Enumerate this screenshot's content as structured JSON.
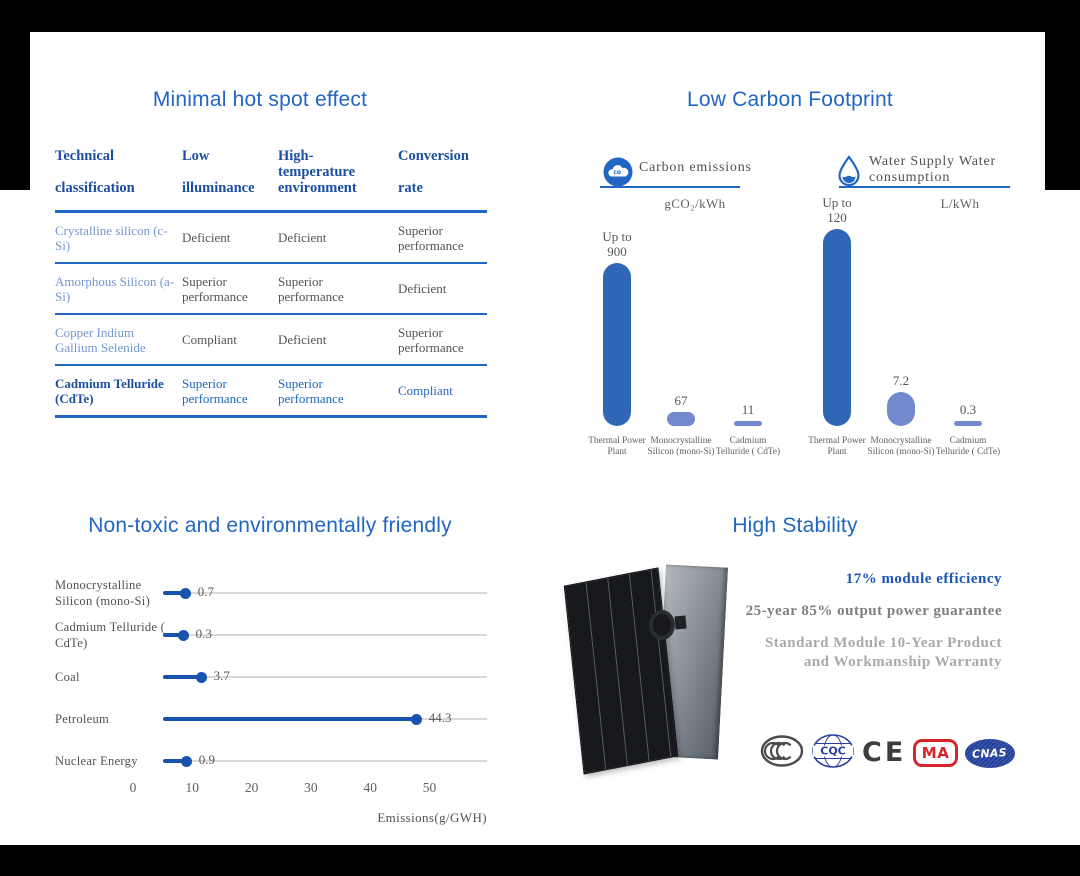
{
  "colors": {
    "accent_blue": "#2166C3",
    "table_header_blue": "#1C4FA1",
    "light_blue": "#7297CE",
    "bar_dark_blue": "#2F66B5",
    "bar_light_blue": "#7289CE",
    "lollipop_blue": "#1853AE",
    "track_gray": "#D9D9D9",
    "text_gray": "#55575A",
    "warranty_gray": "#7D7F82",
    "warranty_light_gray": "#A7A9AC",
    "cma_red": "#D8232A",
    "cnas_blue": "#23409A",
    "frame_black": "#000000"
  },
  "hotspot": {
    "title": "Minimal hot spot effect",
    "table": {
      "header_lines": [
        [
          "Technical",
          "classification"
        ],
        [
          "Low",
          "illuminance"
        ],
        [
          "High-",
          "temperature",
          "environment"
        ],
        [
          "Conversion",
          "rate"
        ]
      ],
      "rows": [
        {
          "label": "Crystalline silicon (c-Si)",
          "cells": [
            "Deficient",
            "Deficient",
            "Superior performance"
          ],
          "highlight": false
        },
        {
          "label": "Amorphous Silicon (a-Si)",
          "cells": [
            "Superior performance",
            "Superior performance",
            "Deficient"
          ],
          "highlight": false
        },
        {
          "label": "Copper Indium Gallium Selenide",
          "cells": [
            "Compliant",
            "Deficient",
            "Superior performance"
          ],
          "highlight": false
        },
        {
          "label": "Cadmium Telluride (CdTe)",
          "cells": [
            "Superior performance",
            "Superior performance",
            "Compliant"
          ],
          "highlight": true
        }
      ]
    }
  },
  "carbon_footprint": {
    "title": "Low Carbon Footprint",
    "charts": [
      {
        "legend_lines": [
          "Carbon emissions"
        ],
        "icon": "carbon-cloud-icon",
        "unit": "gCO₂/kWh",
        "categories": [
          "Thermal Power Plant",
          "Monocrystalline Silicon (mono-Si)",
          "Cadmium Telluride ( CdTe)"
        ],
        "values": [
          900,
          67,
          11
        ],
        "annotations": [
          {
            "prefix": "Up to",
            "value": "900"
          },
          {
            "value": "67"
          },
          {
            "value": "11"
          }
        ]
      },
      {
        "legend_lines": [
          "Water Supply Water",
          "consumption"
        ],
        "icon": "water-drop-icon",
        "unit": "L/kWh",
        "categories": [
          "Thermal Power Plant",
          "Monocrystalline Silicon (mono-Si)",
          "Cadmium Telluride ( CdTe)"
        ],
        "values": [
          120,
          7.2,
          0.3
        ],
        "annotations": [
          {
            "prefix": "Up to",
            "value": "120"
          },
          {
            "value": "7.2"
          },
          {
            "value": "0.3"
          }
        ]
      }
    ]
  },
  "nontoxic": {
    "title": "Non-toxic and environmentally friendly",
    "categories": [
      "Monocrystalline Silicon (mono-Si)",
      "Cadmium Telluride ( CdTe)",
      "Coal",
      "Petroleum",
      "Nuclear Energy"
    ],
    "values": [
      0.7,
      0.3,
      3.7,
      44.3,
      0.9
    ],
    "x_ticks": [
      "0",
      "10",
      "20",
      "30",
      "40",
      "50"
    ],
    "xlabel": "Emissions(g/GWH)"
  },
  "stability": {
    "title": "High Stability",
    "highlights": [
      {
        "text": "17% module efficiency",
        "style": "blue"
      },
      {
        "text": "25-year 85% output power guarantee",
        "style": "gray"
      },
      {
        "text": "Standard Module 10-Year Product and Workmanship Warranty",
        "style": "lgray"
      }
    ],
    "logos": [
      {
        "name": "ccc",
        "text": "CCC"
      },
      {
        "name": "cqc",
        "text": "CQC"
      },
      {
        "name": "ce",
        "text": "CE"
      },
      {
        "name": "cma",
        "text": "MA"
      },
      {
        "name": "cnas",
        "text": "CNAS"
      }
    ]
  },
  "chart_data": [
    {
      "type": "bar",
      "title": "Carbon emissions",
      "ylabel": "gCO₂/kWh",
      "legend_position": "top",
      "categories": [
        "Thermal Power Plant",
        "Monocrystalline Silicon (mono-Si)",
        "Cadmium Telluride ( CdTe)"
      ],
      "values": [
        900,
        67,
        11
      ],
      "annotations": [
        "Up to 900",
        "67",
        "11"
      ],
      "grid": false
    },
    {
      "type": "bar",
      "title": "Water Supply Water consumption",
      "ylabel": "L/kWh",
      "legend_position": "top",
      "categories": [
        "Thermal Power Plant",
        "Monocrystalline Silicon (mono-Si)",
        "Cadmium Telluride ( CdTe)"
      ],
      "values": [
        120,
        7.2,
        0.3
      ],
      "annotations": [
        "Up to 120",
        "7.2",
        "0.3"
      ],
      "grid": false
    },
    {
      "type": "bar",
      "variant": "horizontal-lollipop",
      "title": "Non-toxic and environmentally friendly",
      "categories": [
        "Monocrystalline Silicon (mono-Si)",
        "Cadmium Telluride ( CdTe)",
        "Coal",
        "Petroleum",
        "Nuclear Energy"
      ],
      "values": [
        0.7,
        0.3,
        3.7,
        44.3,
        0.9
      ],
      "xlabel": "Emissions(g/GWH)",
      "xlim": [
        0,
        50
      ],
      "x_ticks": [
        0,
        10,
        20,
        30,
        40,
        50
      ],
      "grid": false
    }
  ]
}
